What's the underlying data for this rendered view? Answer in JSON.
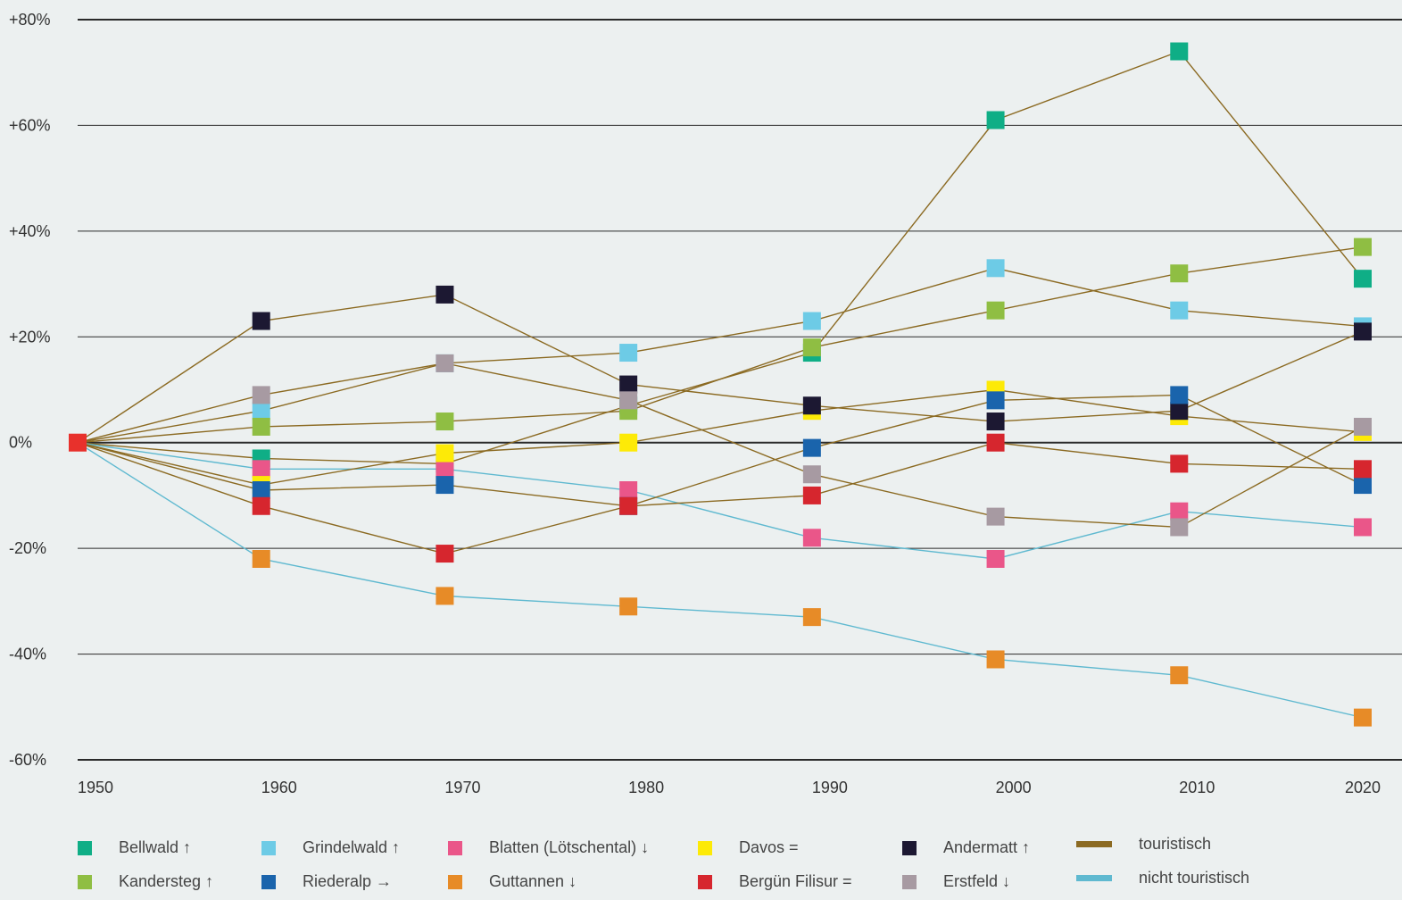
{
  "chart_data": {
    "type": "line",
    "title": "",
    "xlabel": "",
    "ylabel": "",
    "x": [
      1950,
      1960,
      1970,
      1980,
      1990,
      2000,
      2010,
      2020
    ],
    "x_tick_labels": [
      "1950",
      "1960",
      "1970",
      "1980",
      "1990",
      "2000",
      "2010",
      "2020"
    ],
    "ylim": [
      -60,
      80
    ],
    "y_ticks": [
      80,
      60,
      40,
      20,
      0,
      -20,
      -40,
      -60
    ],
    "y_tick_labels": [
      "+80%",
      "+60%",
      "+40%",
      "+20%",
      "0%",
      "-20%",
      "-40%",
      "-60%"
    ],
    "grid": "horizontal",
    "legend_position": "bottom",
    "series": [
      {
        "name": "Bellwald ↑",
        "color": "#0fae86",
        "line": "touristisch",
        "values": [
          0,
          -3,
          -4,
          7,
          17,
          61,
          74,
          31
        ]
      },
      {
        "name": "Grindelwald ↑",
        "color": "#6dcbe6",
        "line": "touristisch",
        "values": [
          0,
          6,
          15,
          17,
          23,
          33,
          25,
          22
        ]
      },
      {
        "name": "Blatten (Lötschental) ↓",
        "color": "#ea5689",
        "line": "nicht touristisch",
        "values": [
          0,
          -5,
          -5,
          -9,
          -18,
          -22,
          -13,
          -16
        ]
      },
      {
        "name": "Davos =",
        "color": "#fdea07",
        "line": "touristisch",
        "values": [
          0,
          -8,
          -2,
          0,
          6,
          10,
          5,
          2
        ]
      },
      {
        "name": "Andermatt ↑",
        "color": "#1c1832",
        "line": "touristisch",
        "values": [
          0,
          23,
          28,
          11,
          7,
          4,
          6,
          21
        ]
      },
      {
        "name": "Kandersteg ↑",
        "color": "#8fbe43",
        "line": "touristisch",
        "values": [
          0,
          3,
          4,
          6,
          18,
          25,
          32,
          37
        ]
      },
      {
        "name": "Riederalp →",
        "color": "#1a64ac",
        "line": "touristisch",
        "values": [
          0,
          -9,
          -8,
          -12,
          -1,
          8,
          9,
          -8
        ]
      },
      {
        "name": "Guttannen ↓",
        "color": "#e78b27",
        "line": "nicht touristisch",
        "values": [
          0,
          -22,
          -29,
          -31,
          -33,
          -41,
          -44,
          -52
        ]
      },
      {
        "name": "Bergün Filisur =",
        "color": "#d6262e",
        "line": "touristisch",
        "values": [
          0,
          -12,
          -21,
          -12,
          -10,
          0,
          -4,
          -5
        ]
      },
      {
        "name": "Erstfeld ↓",
        "color": "#a79aa2",
        "line": "touristisch",
        "values": [
          0,
          9,
          15,
          8,
          -6,
          -14,
          -16,
          3
        ]
      }
    ],
    "line_types": [
      {
        "name": "touristisch",
        "color": "#8b6a22"
      },
      {
        "name": "nicht touristisch",
        "color": "#5fb9d0"
      }
    ]
  }
}
